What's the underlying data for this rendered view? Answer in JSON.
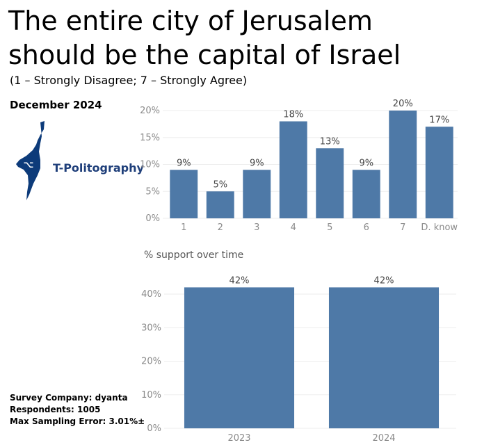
{
  "title_line1": "The entire city of Jerusalem",
  "title_line2": "should be the capital of Israel",
  "subtitle": "(1 – Strongly Disagree; 7 – Strongly Agree)",
  "date": "December 2024",
  "logo": {
    "text": "T-Politography",
    "icon": "israel-map-icon",
    "color": "#0d3b7a"
  },
  "footer": {
    "survey_company": "Survey Company: dyanta",
    "respondents": "Respondents: 1005",
    "sampling_error": "Max Sampling Error: 3.01%±"
  },
  "bar_color": "#4e79a7",
  "chart_data": [
    {
      "type": "bar",
      "title": "",
      "categories": [
        "1",
        "2",
        "3",
        "4",
        "5",
        "6",
        "7",
        "D. know"
      ],
      "values": [
        9,
        5,
        9,
        18,
        13,
        9,
        20,
        17
      ],
      "value_labels": [
        "9%",
        "5%",
        "9%",
        "18%",
        "13%",
        "9%",
        "20%",
        "17%"
      ],
      "yticks": [
        "0%",
        "5%",
        "10%",
        "15%",
        "20%"
      ],
      "ylim": [
        0,
        20
      ],
      "grid": true
    },
    {
      "type": "bar",
      "title": "% support over time",
      "categories": [
        "2023",
        "2024"
      ],
      "values": [
        42,
        42
      ],
      "value_labels": [
        "42%",
        "42%"
      ],
      "yticks": [
        "0%",
        "10%",
        "20%",
        "30%",
        "40%"
      ],
      "ylim": [
        0,
        40
      ],
      "grid": true
    }
  ]
}
